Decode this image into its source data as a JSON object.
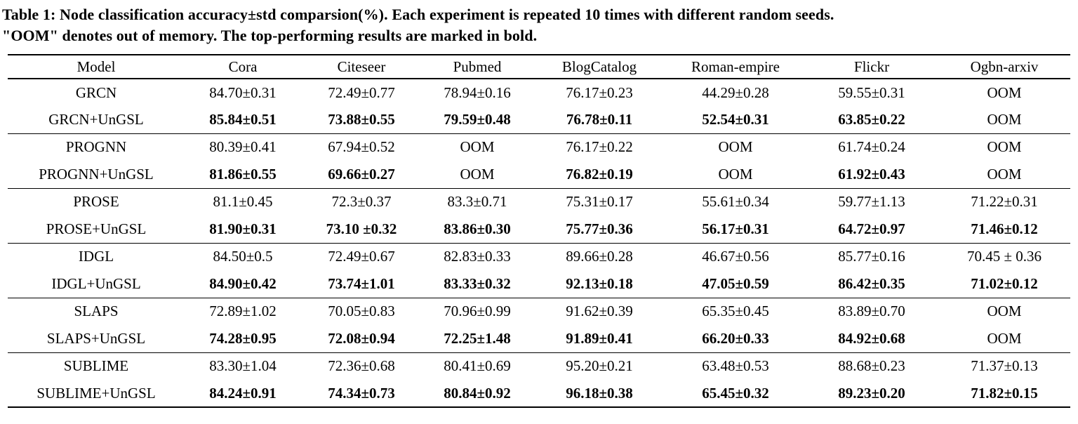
{
  "caption": {
    "line1": "Table 1: Node classification accuracy±std comparsion(%). Each experiment is repeated 10 times with different random seeds.",
    "line2": "\"OOM\" denotes out of memory. The top-performing results are marked in bold."
  },
  "table": {
    "columns": [
      "Model",
      "Cora",
      "Citeseer",
      "Pubmed",
      "BlogCatalog",
      "Roman-empire",
      "Flickr",
      "Ogbn-arxiv"
    ],
    "groups": [
      {
        "rows": [
          {
            "model": "GRCN",
            "bold": false,
            "cells": [
              "84.70±0.31",
              "72.49±0.77",
              "78.94±0.16",
              "76.17±0.23",
              "44.29±0.28",
              "59.55±0.31",
              "OOM"
            ]
          },
          {
            "model": "GRCN+UnGSL",
            "bold": true,
            "cells": [
              "85.84±0.51",
              "73.88±0.55",
              "79.59±0.48",
              "76.78±0.11",
              "52.54±0.31",
              "63.85±0.22",
              "OOM"
            ]
          }
        ]
      },
      {
        "rows": [
          {
            "model": "PROGNN",
            "bold": false,
            "cells": [
              "80.39±0.41",
              "67.94±0.52",
              "OOM",
              "76.17±0.22",
              "OOM",
              "61.74±0.24",
              "OOM"
            ]
          },
          {
            "model": "PROGNN+UnGSL",
            "bold": true,
            "cells": [
              "81.86±0.55",
              "69.66±0.27",
              "OOM",
              "76.82±0.19",
              "OOM",
              "61.92±0.43",
              "OOM"
            ]
          }
        ]
      },
      {
        "rows": [
          {
            "model": "PROSE",
            "bold": false,
            "cells": [
              "81.1±0.45",
              "72.3±0.37",
              "83.3±0.71",
              "75.31±0.17",
              "55.61±0.34",
              "59.77±1.13",
              "71.22±0.31"
            ]
          },
          {
            "model": "PROSE+UnGSL",
            "bold": true,
            "cells": [
              "81.90±0.31",
              "73.10 ±0.32",
              "83.86±0.30",
              "75.77±0.36",
              "56.17±0.31",
              "64.72±0.97",
              "71.46±0.12"
            ]
          }
        ]
      },
      {
        "rows": [
          {
            "model": "IDGL",
            "bold": false,
            "cells": [
              "84.50±0.5",
              "72.49±0.67",
              "82.83±0.33",
              "89.66±0.28",
              "46.67±0.56",
              "85.77±0.16",
              "70.45 ± 0.36"
            ]
          },
          {
            "model": "IDGL+UnGSL",
            "bold": true,
            "cells": [
              "84.90±0.42",
              "73.74±1.01",
              "83.33±0.32",
              "92.13±0.18",
              "47.05±0.59",
              "86.42±0.35",
              "71.02±0.12"
            ]
          }
        ]
      },
      {
        "rows": [
          {
            "model": "SLAPS",
            "bold": false,
            "cells": [
              "72.89±1.02",
              "70.05±0.83",
              "70.96±0.99",
              "91.62±0.39",
              "65.35±0.45",
              "83.89±0.70",
              "OOM"
            ]
          },
          {
            "model": "SLAPS+UnGSL",
            "bold": true,
            "cells": [
              "74.28±0.95",
              "72.08±0.94",
              "72.25±1.48",
              "91.89±0.41",
              "66.20±0.33",
              "84.92±0.68",
              "OOM"
            ]
          }
        ]
      },
      {
        "rows": [
          {
            "model": "SUBLIME",
            "bold": false,
            "cells": [
              "83.30±1.04",
              "72.36±0.68",
              "80.41±0.69",
              "95.20±0.21",
              "63.48±0.53",
              "88.68±0.23",
              "71.37±0.13"
            ]
          },
          {
            "model": "SUBLIME+UnGSL",
            "bold": true,
            "cells": [
              "84.24±0.91",
              "74.34±0.73",
              "80.84±0.92",
              "96.18±0.38",
              "65.45±0.32",
              "89.23±0.20",
              "71.82±0.15"
            ]
          }
        ]
      }
    ]
  },
  "colors": {
    "text": "#000000",
    "background": "#ffffff",
    "rule": "#000000"
  }
}
